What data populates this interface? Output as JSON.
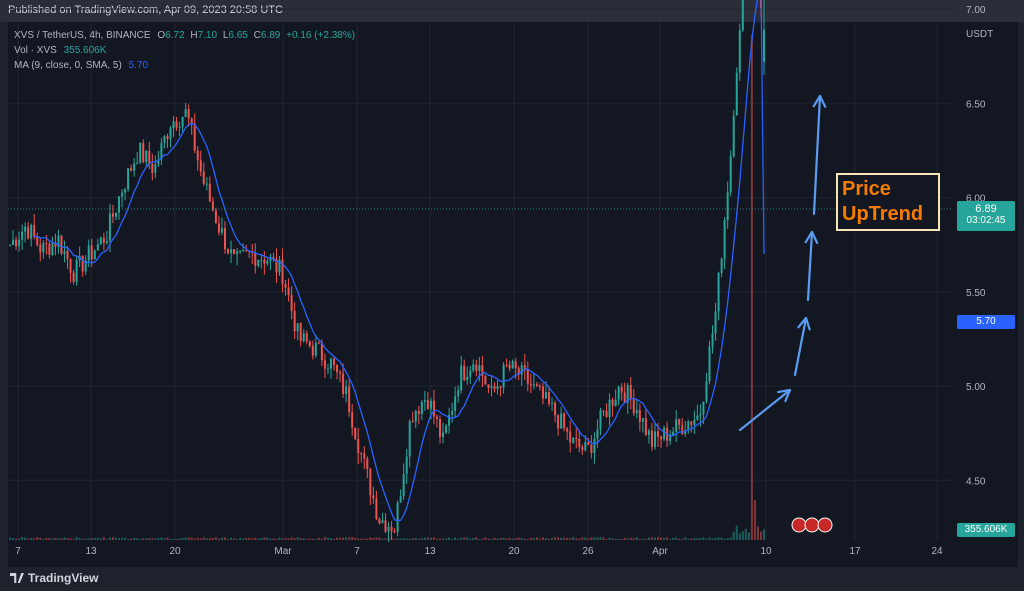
{
  "header": {
    "published": "Published on TradingView.com, Apr 09, 2023 20:58 UTC"
  },
  "legend": {
    "symbol": "XVS / TetherUS, 4h, BINANCE",
    "o_label": "O",
    "o": "6.72",
    "h_label": "H",
    "h": "7.10",
    "l_label": "L",
    "l": "6.65",
    "c_label": "C",
    "c": "6.89",
    "change": "+0.16 (+2.38%)",
    "vol_label": "Vol · XVS",
    "vol": "355.606K",
    "ma_label": "MA (9, close, 0, SMA, 5)",
    "ma": "5.70"
  },
  "price_axis": {
    "currency": "USDT"
  },
  "tags": {
    "last_price": "6.89",
    "countdown": "03:02:45",
    "ma_value": "5.70",
    "volume": "355.606K"
  },
  "annotation": {
    "line1": "Price",
    "line2": "UpTrend"
  },
  "footer": {
    "brand": "TradingView"
  },
  "colors": {
    "up": "#26a69a",
    "down": "#ef5350",
    "ma": "#2962ff",
    "arrows": "#5b9cf0",
    "annotation": "#f57c00"
  },
  "chart_data": {
    "type": "candlestick",
    "symbol": "XVS / TetherUS",
    "interval": "4h",
    "y_ticks": [
      4.0,
      4.5,
      5.0,
      5.5,
      6.0,
      6.5,
      7.0,
      7.5,
      8.0,
      8.5
    ],
    "y_range": [
      3.55,
      8.75
    ],
    "x_ticks": [
      "7",
      "13",
      "20",
      "Mar",
      "7",
      "13",
      "20",
      "26",
      "Apr",
      "10",
      "17",
      "24"
    ],
    "last": {
      "open": 6.72,
      "high": 7.1,
      "low": 6.65,
      "close": 6.89,
      "change": 0.16,
      "change_pct": 2.38
    },
    "ma_period": 9,
    "ma_last": 5.7,
    "volume_last_k": 355.606,
    "approx_close_path": [
      5.75,
      5.85,
      5.72,
      5.78,
      5.6,
      5.7,
      5.8,
      6.05,
      6.25,
      6.15,
      6.4,
      6.45,
      6.1,
      5.85,
      5.65,
      5.7,
      5.68,
      5.6,
      5.25,
      5.2,
      5.12,
      4.95,
      4.6,
      4.3,
      4.25,
      4.85,
      4.95,
      4.7,
      5.05,
      5.15,
      4.95,
      5.1,
      5.05,
      4.95,
      4.85,
      4.7,
      4.65,
      4.85,
      5.0,
      4.9,
      4.7,
      4.75,
      4.8,
      4.85,
      5.4,
      6.3,
      7.5,
      6.89
    ]
  }
}
